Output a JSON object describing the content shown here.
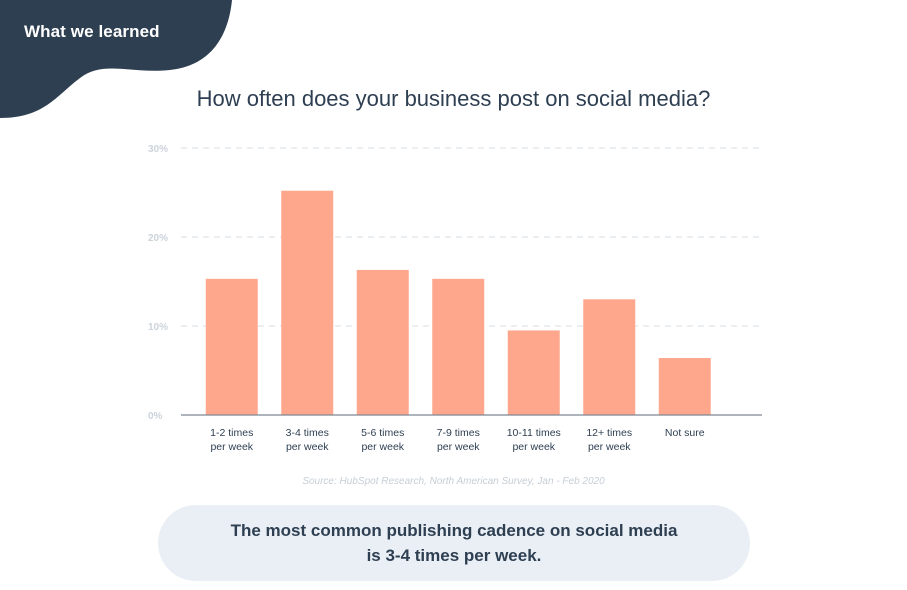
{
  "header": {
    "section_label": "What we learned"
  },
  "colors": {
    "header_blob": "#2e3f52",
    "bar": "#ffa78d",
    "axis_text": "#cbd3db",
    "gridline": "#d9dfe5",
    "takeaway_bg": "#e9eff5",
    "text_dark": "#2e3f52"
  },
  "chart_data": {
    "type": "bar",
    "title": "How often does your business post on social media?",
    "categories": [
      "1-2 times\nper week",
      "3-4 times\nper week",
      "5-6 times\nper week",
      "7-9 times\nper week",
      "10-11 times\nper week",
      "12+ times\nper week",
      "Not sure"
    ],
    "values": [
      15.3,
      25.2,
      16.3,
      15.3,
      9.5,
      13.0,
      6.4
    ],
    "unit": "%",
    "ylim": [
      0,
      30
    ],
    "yticks": [
      0,
      10,
      20,
      30
    ],
    "ytick_labels": [
      "0%",
      "10%",
      "20%",
      "30%"
    ],
    "xlabel": "",
    "ylabel": "",
    "grid": true
  },
  "source": "Source: HubSpot Research, North American Survey, Jan - Feb 2020",
  "takeaway": "The most common publishing cadence on social media\nis 3-4 times per week."
}
